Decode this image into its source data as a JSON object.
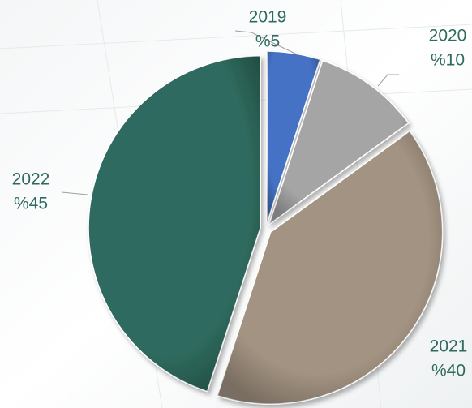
{
  "chart_data": {
    "type": "pie",
    "categories": [
      "2019",
      "2020",
      "2021",
      "2022"
    ],
    "values": [
      5,
      10,
      40,
      45
    ],
    "value_labels": [
      "%5",
      "%10",
      "%40",
      "%45"
    ],
    "colors": [
      "#4472c4",
      "#a5a5a5",
      "#a39382",
      "#2f6b5e"
    ]
  }
}
